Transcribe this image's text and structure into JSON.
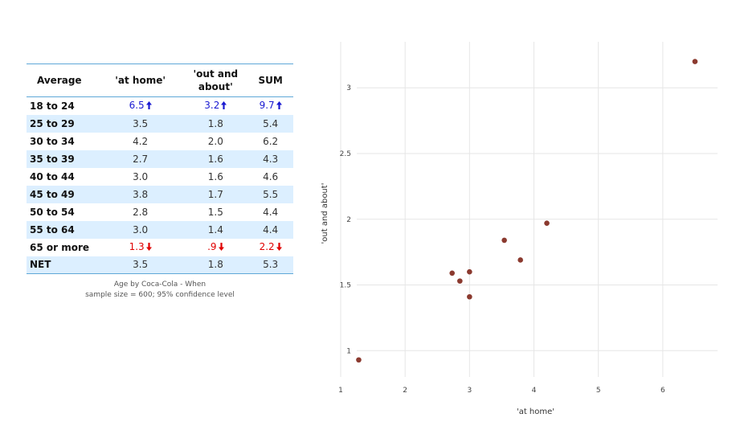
{
  "table": {
    "headers": [
      "Average",
      "'at home'",
      "'out and about'",
      "SUM"
    ],
    "rows": [
      {
        "label": "18 to 24",
        "values": [
          "6.5",
          "3.2",
          "9.7"
        ],
        "status": "up"
      },
      {
        "label": "25 to 29",
        "values": [
          "3.5",
          "1.8",
          "5.4"
        ],
        "status": ""
      },
      {
        "label": "30 to 34",
        "values": [
          "4.2",
          "2.0",
          "6.2"
        ],
        "status": ""
      },
      {
        "label": "35 to 39",
        "values": [
          "2.7",
          "1.6",
          "4.3"
        ],
        "status": ""
      },
      {
        "label": "40 to 44",
        "values": [
          "3.0",
          "1.6",
          "4.6"
        ],
        "status": ""
      },
      {
        "label": "45 to 49",
        "values": [
          "3.8",
          "1.7",
          "5.5"
        ],
        "status": ""
      },
      {
        "label": "50 to 54",
        "values": [
          "2.8",
          "1.5",
          "4.4"
        ],
        "status": ""
      },
      {
        "label": "55 to 64",
        "values": [
          "3.0",
          "1.4",
          "4.4"
        ],
        "status": ""
      },
      {
        "label": "65 or more",
        "values": [
          "1.3",
          ".9",
          "2.2"
        ],
        "status": "down"
      },
      {
        "label": "NET",
        "values": [
          "3.5",
          "1.8",
          "5.3"
        ],
        "status": ""
      }
    ],
    "caption_line1": "Age by Coca-Cola - When",
    "caption_line2": "sample size = 600; 95% confidence level"
  },
  "colors": {
    "up": "#1a1ad1",
    "down": "#e00000",
    "point": "#8b3a2f",
    "grid": "#e6e6e6",
    "band": "#dcefff"
  },
  "chart_data": {
    "type": "scatter",
    "xlabel": "'at home'",
    "ylabel": "'out and about'",
    "xlim": [
      0.95,
      6.85
    ],
    "ylim": [
      0.8,
      3.35
    ],
    "xticks": [
      1,
      2,
      3,
      4,
      5,
      6
    ],
    "yticks": [
      1,
      1.5,
      2,
      2.5,
      3
    ],
    "xtick_labels": [
      "1",
      "2",
      "3",
      "4",
      "5",
      "6"
    ],
    "ytick_labels": [
      "1",
      "1.5",
      "2",
      "2.5",
      "3"
    ],
    "grid": true,
    "points": [
      {
        "x": 6.5,
        "y": 3.2
      },
      {
        "x": 3.54,
        "y": 1.84
      },
      {
        "x": 4.2,
        "y": 1.97
      },
      {
        "x": 2.73,
        "y": 1.59
      },
      {
        "x": 3.0,
        "y": 1.6
      },
      {
        "x": 3.79,
        "y": 1.69
      },
      {
        "x": 2.85,
        "y": 1.53
      },
      {
        "x": 3.0,
        "y": 1.41
      },
      {
        "x": 1.28,
        "y": 0.93
      }
    ]
  }
}
